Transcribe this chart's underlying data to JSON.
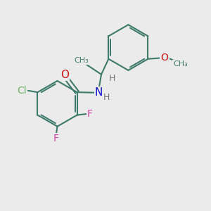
{
  "bg_color": "#ebebeb",
  "bond_color": "#3d7a6a",
  "bond_width": 1.5,
  "atom_colors": {
    "Cl": "#6ab86a",
    "F": "#cc44aa",
    "O": "#cc1111",
    "N": "#1111cc",
    "H": "#777777",
    "C": "#3d7a6a"
  }
}
